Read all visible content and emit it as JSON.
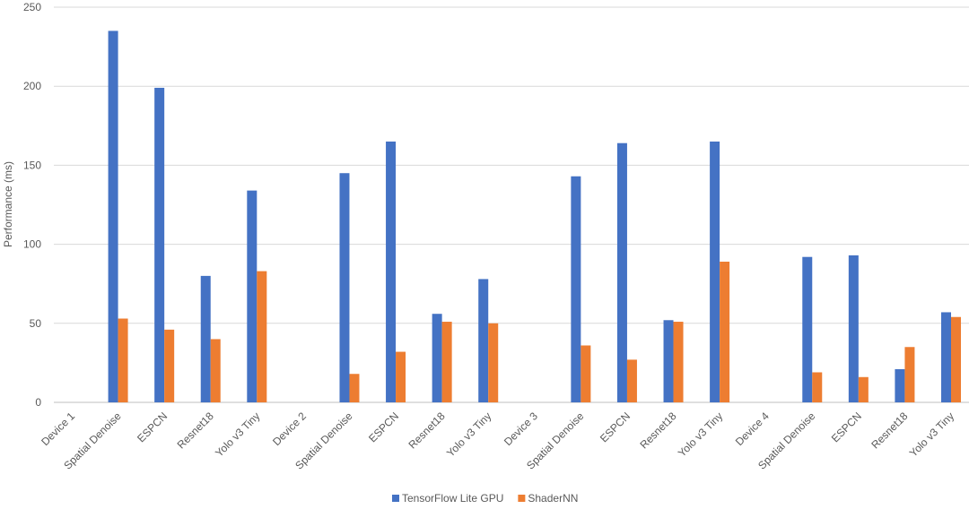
{
  "chart_data": {
    "type": "bar",
    "ylabel": "Performance (ms)",
    "xlabel": "",
    "ylim": [
      0,
      250
    ],
    "yticks": [
      0,
      50,
      100,
      150,
      200,
      250
    ],
    "grid": true,
    "legend_position": "bottom",
    "categories": [
      "Device 1",
      "Spatial Denoise",
      "ESPCN",
      "Resnet18",
      "Yolo v3 Tiny",
      "Device 2",
      "Spatial Denoise",
      "ESPCN",
      "Resnet18",
      "Yolo v3 Tiny",
      "Device 3",
      "Spatial Denoise",
      "ESPCN",
      "Resnet18",
      "Yolo v3 Tiny",
      "Device 4",
      "Spatial Denoise",
      "ESPCN",
      "Resnet18",
      "Yolo v3 Tiny"
    ],
    "series": [
      {
        "name": "TensorFlow Lite GPU",
        "color": "#4472C4",
        "values": [
          null,
          235,
          199,
          80,
          134,
          null,
          145,
          165,
          56,
          78,
          null,
          143,
          164,
          52,
          165,
          null,
          92,
          93,
          21,
          57
        ]
      },
      {
        "name": "ShaderNN",
        "color": "#ED7D31",
        "values": [
          null,
          53,
          46,
          40,
          83,
          null,
          18,
          32,
          51,
          50,
          null,
          36,
          27,
          51,
          89,
          null,
          19,
          16,
          35,
          54
        ]
      }
    ]
  }
}
